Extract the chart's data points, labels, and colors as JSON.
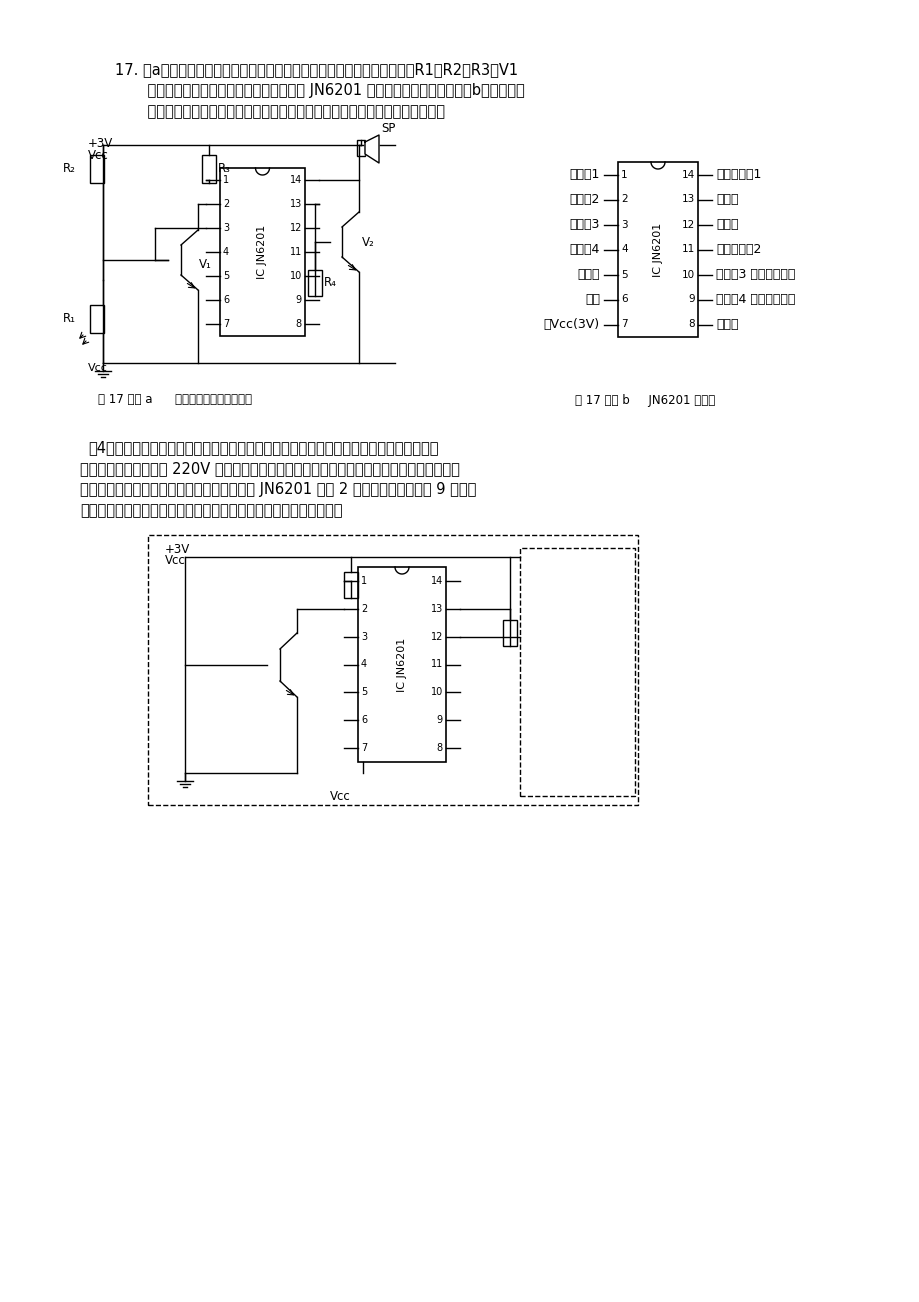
{
  "bg_color": "#ffffff",
  "text_color": "#000000",
  "line1": "17. 图a所示是光控喇叭试验电路原理图，当光线充足时，喇叭发出声音。R1、R2、R3、V1",
  "line2": "    组成光线信号采集与放大电路，集成店里 JN6201 为音乐集成电路（引脚见图b），用于实",
  "line3": "    现逻辑控制和音乐的输出。请完成以下任务：（根据浙江省选考模拟卷改编）",
  "caption_a": "第 17 题图 a      光控喇叭试验电路原理图",
  "caption_b": "第 17 题图 b     JN6201 引脚图",
  "pin_labels_left": [
    "输入端1",
    "输入端2",
    "输入端3",
    "输入端4",
    "未定义",
    "接地",
    "接Vcc(3V)"
  ],
  "pin_numbers_left": [
    1,
    2,
    3,
    4,
    5,
    6,
    7
  ],
  "pin_labels_right": [
    "音乐输出端1",
    "未定义",
    "未定义",
    "音乐输出端2",
    "输出端3 接发光二极管",
    "输出端4 接电磁继电器",
    "未定义"
  ],
  "pin_numbers_right": [
    14,
    13,
    12,
    11,
    10,
    9,
    8
  ],
  "sub_line1": "（4）小明同学要将该实验电路改装为楼道灯控制系统，当天暗时，楼道灯自动打开，天亮",
  "sub_line2": "时自动关闭。楼道灯由 220V 交流电源供电，采用直流电磁继电器的触点作为楼道灯的开光，",
  "sub_line3": "用三极管控制继电器触点的闭合与断开。已知 JN6201 在第 2 脚输入高电平时，第 9 脚才输",
  "sub_line4": "出高电平。请你根据上述条件和要求在虚线框中帮助小明画全电路。"
}
